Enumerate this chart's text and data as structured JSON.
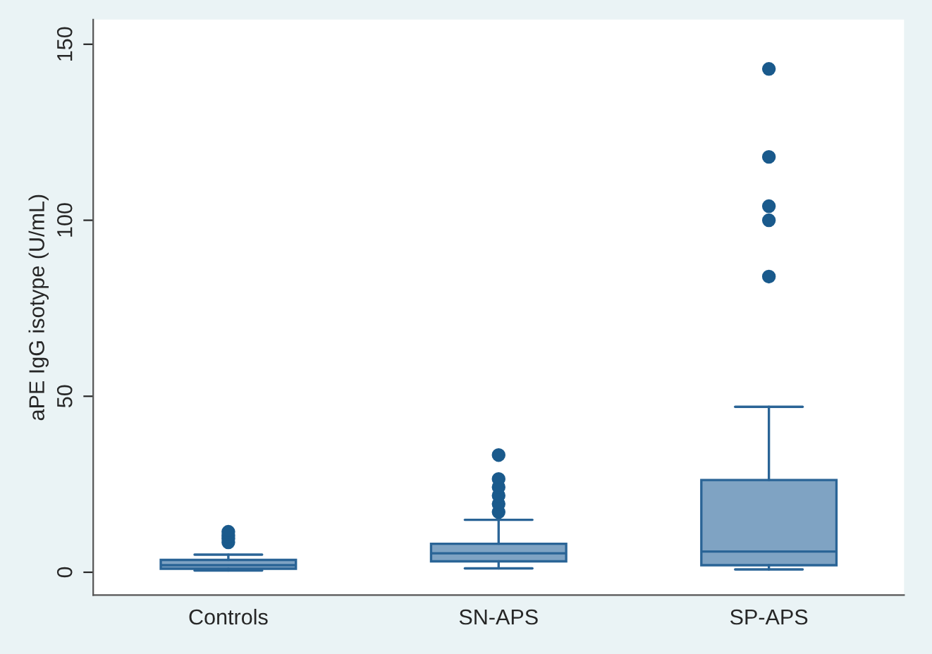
{
  "chart_data": {
    "type": "box",
    "ylabel": "aPE IgG isotype (U/mL)",
    "categories": [
      "Controls",
      "SN-APS",
      "SP-APS"
    ],
    "boxes": [
      {
        "low": 0.5,
        "q1": 1,
        "median": 2,
        "q3": 3.5,
        "high": 5,
        "outliers": [
          8.5,
          9.5,
          10.5,
          11.5
        ]
      },
      {
        "low": 1.1,
        "q1": 3.1,
        "median": 5.4,
        "q3": 8.1,
        "high": 14.9,
        "outliers": [
          17.1,
          19.4,
          21.8,
          24.2,
          26.5,
          33.3
        ]
      },
      {
        "low": 0.8,
        "q1": 2,
        "median": 5.9,
        "q3": 26.2,
        "high": 47,
        "outliers": [
          84,
          100,
          104,
          118,
          143
        ]
      }
    ],
    "color": "#7fa3c3",
    "ylim": [
      -6.5,
      157
    ],
    "yticks": [
      0,
      50,
      100,
      150
    ],
    "grid": false
  }
}
